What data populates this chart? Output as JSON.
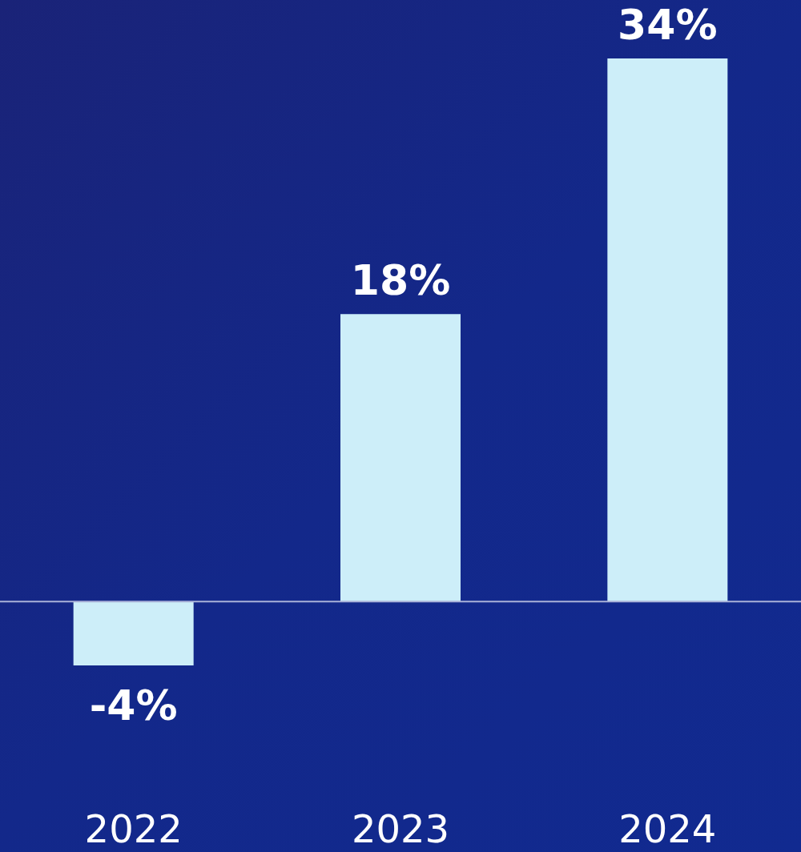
{
  "chart_data": {
    "type": "bar",
    "categories": [
      "2022",
      "2023",
      "2024"
    ],
    "values": [
      -4,
      18,
      34
    ],
    "value_labels": [
      "-4%",
      "18%",
      "34%"
    ],
    "color": "#cdeef9",
    "ref_lines": [
      {
        "axis": "y",
        "value": 0,
        "color": "#aab2d8"
      }
    ]
  }
}
